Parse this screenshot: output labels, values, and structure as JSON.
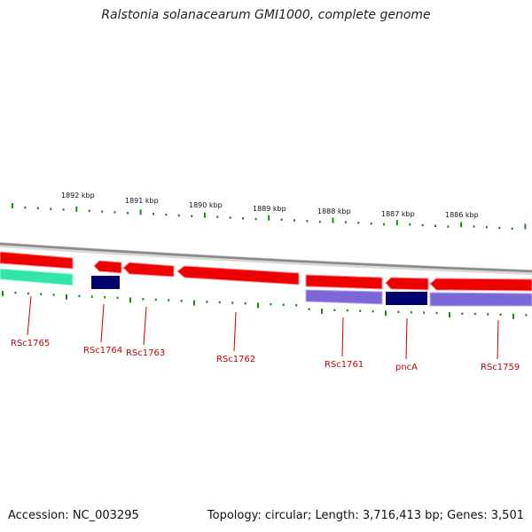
{
  "title": "Ralstonia solanacearum GMI1000, complete genome",
  "footer": {
    "accession": "Accession: NC_003295",
    "summary": "Topology: circular; Length: 3,716,413 bp; Genes: 3,501"
  },
  "scale_labels": [
    "1892 kbp",
    "1891 kbp",
    "1890 kbp",
    "1889 kbp",
    "1888 kbp",
    "1887 kbp",
    "1886 kbp"
  ],
  "genes": [
    {
      "name": "RSc1765",
      "strand": "reverse",
      "type": "protein"
    },
    {
      "name": "RSc1764",
      "strand": "reverse",
      "type": "rna"
    },
    {
      "name": "RSc1763",
      "strand": "reverse",
      "type": "protein"
    },
    {
      "name": "RSc1762",
      "strand": "reverse",
      "type": "protein"
    },
    {
      "name": "RSc1761",
      "strand": "reverse",
      "type": "protein"
    },
    {
      "name": "pncA",
      "strand": "reverse",
      "type": "rna"
    },
    {
      "name": "RSc1759",
      "strand": "reverse",
      "type": "protein"
    }
  ],
  "colors": {
    "backbone": "#8a8a8a",
    "gene_red": "#ee0000",
    "gene_red_light": "#ff8080",
    "navy": "#00006e",
    "lavender": "#7b68d6",
    "teal": "#33e6a8",
    "ticks": "#1a8a1a",
    "label": "#cc0000"
  }
}
